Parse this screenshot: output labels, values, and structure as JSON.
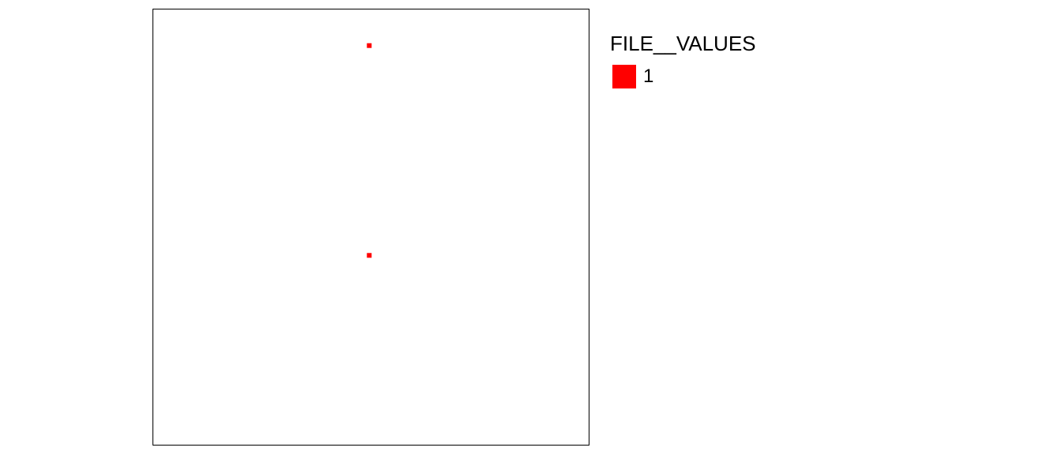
{
  "map": {
    "extent": {
      "xmin": 0,
      "xmax": 100,
      "ymin": 0,
      "ymax": 100
    },
    "features": [
      {
        "x": 49.6,
        "y": 91.7,
        "value": 1
      },
      {
        "x": 49.6,
        "y": 43.5,
        "value": 1
      }
    ]
  },
  "legend": {
    "title": "FILE__VALUES",
    "items": [
      {
        "label": "1",
        "color": "#ff0000"
      }
    ]
  }
}
